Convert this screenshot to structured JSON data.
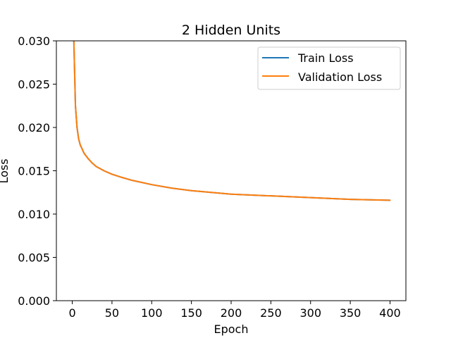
{
  "chart_data": {
    "type": "line",
    "title": "2 Hidden Units",
    "xlabel": "Epoch",
    "ylabel": "Loss",
    "xlim": [
      -20,
      420
    ],
    "ylim": [
      0,
      0.03
    ],
    "xticks": [
      0,
      50,
      100,
      150,
      200,
      250,
      300,
      350,
      400
    ],
    "yticks": [
      0,
      0.005,
      0.01,
      0.015,
      0.02,
      0.025,
      0.03
    ],
    "xtick_labels": [
      "0",
      "50",
      "100",
      "150",
      "200",
      "250",
      "300",
      "350",
      "400"
    ],
    "ytick_labels": [
      "0.000",
      "0.005",
      "0.010",
      "0.015",
      "0.020",
      "0.025",
      "0.030"
    ],
    "grid": false,
    "legend_position": "top-right",
    "x": [
      1,
      2,
      4,
      6,
      8,
      10,
      15,
      20,
      25,
      30,
      40,
      50,
      60,
      75,
      100,
      125,
      150,
      175,
      200,
      250,
      300,
      350,
      400
    ],
    "series": [
      {
        "name": "Train Loss",
        "color": "#1f77b4",
        "values": [
          0.05,
          0.03,
          0.0225,
          0.02,
          0.0187,
          0.018,
          0.017,
          0.0164,
          0.0159,
          0.0155,
          0.015,
          0.0146,
          0.0143,
          0.0139,
          0.0134,
          0.013,
          0.0127,
          0.0125,
          0.0123,
          0.0121,
          0.0119,
          0.0117,
          0.0116
        ]
      },
      {
        "name": "Validation Loss",
        "color": "#ff7f0e",
        "values": [
          0.05,
          0.03,
          0.0225,
          0.02,
          0.0187,
          0.018,
          0.017,
          0.0164,
          0.0159,
          0.0155,
          0.015,
          0.0146,
          0.0143,
          0.0139,
          0.0134,
          0.013,
          0.0127,
          0.0125,
          0.0123,
          0.0121,
          0.0119,
          0.0117,
          0.0116
        ]
      }
    ]
  }
}
